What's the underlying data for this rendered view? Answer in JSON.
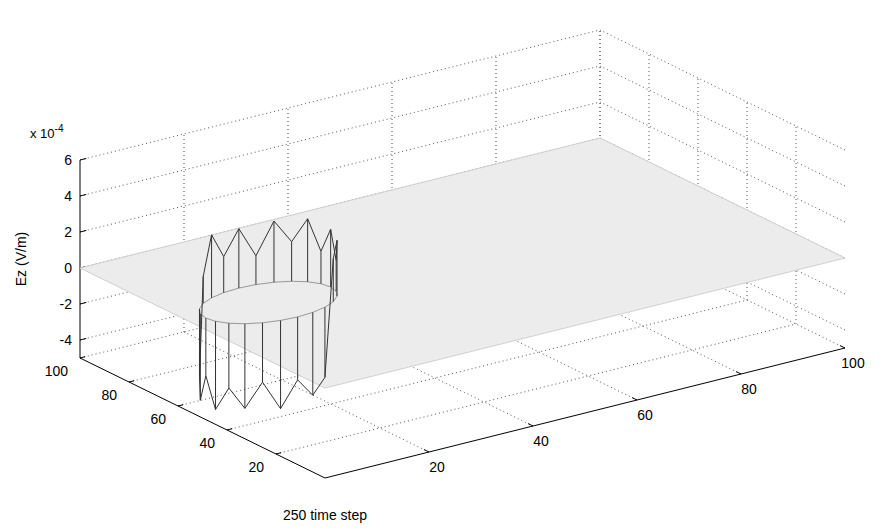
{
  "chart_data": {
    "type": "surface",
    "zlabel": "Ez (V/m)",
    "zscale_base": "x 10",
    "zscale_exponent": -4,
    "caption": "250 time step",
    "xlim": [
      0,
      100
    ],
    "ylim": [
      0,
      100
    ],
    "zlim": [
      -5,
      6
    ],
    "xticks": [
      20,
      40,
      60,
      80,
      100
    ],
    "yticks": [
      20,
      40,
      60,
      80,
      100
    ],
    "zticks": [
      -4,
      -2,
      0,
      2,
      4,
      6
    ],
    "grid": true,
    "surface_level": 0,
    "color": "#333333",
    "points": [
      {
        "x": 27,
        "y": 55,
        "z": 3.2
      },
      {
        "x": 26.6,
        "y": 58.1,
        "z": 1.8
      },
      {
        "x": 25.4,
        "y": 61,
        "z": 3.5
      },
      {
        "x": 23.5,
        "y": 63.5,
        "z": 2.2
      },
      {
        "x": 21,
        "y": 65.4,
        "z": 3.4
      },
      {
        "x": 18.1,
        "y": 66.6,
        "z": 1.6
      },
      {
        "x": 15,
        "y": 67,
        "z": 3.3
      },
      {
        "x": 11.9,
        "y": 66.6,
        "z": 2.0
      },
      {
        "x": 9,
        "y": 65.4,
        "z": 3.5
      },
      {
        "x": 6.5,
        "y": 63.5,
        "z": 1.5
      },
      {
        "x": 4.6,
        "y": 61,
        "z": -3.8
      },
      {
        "x": 3.4,
        "y": 58.1,
        "z": -4.8
      },
      {
        "x": 3,
        "y": 55,
        "z": -3.2
      },
      {
        "x": 3.4,
        "y": 51.9,
        "z": -4.9
      },
      {
        "x": 4.6,
        "y": 49,
        "z": -3.6
      },
      {
        "x": 6.5,
        "y": 46.5,
        "z": -4.7
      },
      {
        "x": 9,
        "y": 44.6,
        "z": -3.3
      },
      {
        "x": 11.9,
        "y": 43.4,
        "z": -4.9
      },
      {
        "x": 15,
        "y": 43,
        "z": -3.5
      },
      {
        "x": 18.1,
        "y": 43.4,
        "z": -4.6
      },
      {
        "x": 21,
        "y": 44.6,
        "z": -3.9
      },
      {
        "x": 23.5,
        "y": 46.5,
        "z": 2.4
      },
      {
        "x": 25.4,
        "y": 49,
        "z": 3.1
      },
      {
        "x": 26.6,
        "y": 51.9,
        "z": 1.7
      }
    ]
  }
}
